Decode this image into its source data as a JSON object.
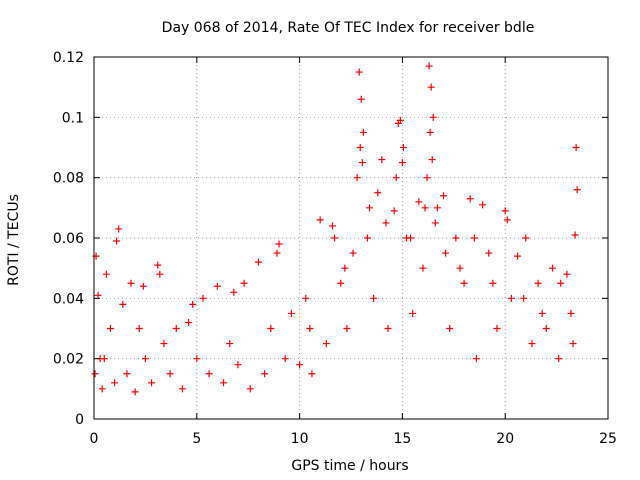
{
  "chart_data": {
    "type": "scatter",
    "title": "Day 068 of 2014, Rate Of TEC Index for receiver bdle",
    "xlabel": "GPS time / hours",
    "ylabel": "ROTI / TECUs",
    "xlim": [
      0,
      25
    ],
    "ylim": [
      0,
      0.12
    ],
    "x_ticks": [
      "0",
      "5",
      "10",
      "15",
      "20",
      "25"
    ],
    "y_ticks": [
      "0",
      "0.02",
      "0.04",
      "0.06",
      "0.08",
      "0.1",
      "0.12"
    ],
    "grid": true,
    "marker": "+",
    "color": "#ff0000",
    "series": [
      {
        "x": [
          0.05,
          0.1,
          0.2,
          0.3,
          0.4,
          0.6,
          0.8,
          1.0,
          1.2,
          1.4,
          1.6,
          1.8,
          2.0,
          2.2,
          2.5,
          2.8,
          3.1,
          3.4,
          3.7,
          4.0,
          4.3,
          4.6,
          5.0,
          5.3,
          5.6,
          6.0,
          6.3,
          6.6,
          7.0,
          7.3,
          7.6,
          8.0,
          8.3,
          8.6,
          9.0,
          9.3,
          9.6,
          10.0,
          10.3,
          10.6,
          11.0,
          11.3,
          11.6,
          12.0,
          12.3,
          12.6,
          12.8,
          12.9,
          13.0,
          13.1,
          13.3,
          13.6,
          14.0,
          14.3,
          14.6,
          14.8,
          14.9,
          15.0,
          15.2,
          15.5,
          15.8,
          16.0,
          16.2,
          16.3,
          16.4,
          16.5,
          16.7,
          17.0,
          17.3,
          17.6,
          18.0,
          18.3,
          18.6,
          18.9,
          19.2,
          19.6,
          20.0,
          20.3,
          20.6,
          21.0,
          21.3,
          21.6,
          22.0,
          22.3,
          22.6,
          23.0,
          23.2,
          23.4,
          23.45,
          23.5,
          0.5,
          1.1,
          2.4,
          3.2,
          4.8,
          6.8,
          8.9,
          10.5,
          11.7,
          12.2,
          12.95,
          13.05,
          13.4,
          13.8,
          14.2,
          14.7,
          15.05,
          15.4,
          16.1,
          16.35,
          16.45,
          16.6,
          17.1,
          17.8,
          18.5,
          19.4,
          20.1,
          20.9,
          21.8,
          22.7,
          23.3
        ],
        "y": [
          0.015,
          0.054,
          0.041,
          0.02,
          0.01,
          0.048,
          0.03,
          0.012,
          0.063,
          0.038,
          0.015,
          0.045,
          0.009,
          0.03,
          0.02,
          0.012,
          0.051,
          0.025,
          0.015,
          0.03,
          0.01,
          0.032,
          0.02,
          0.04,
          0.015,
          0.044,
          0.012,
          0.025,
          0.018,
          0.045,
          0.01,
          0.052,
          0.015,
          0.03,
          0.058,
          0.02,
          0.035,
          0.018,
          0.04,
          0.015,
          0.066,
          0.025,
          0.064,
          0.045,
          0.03,
          0.055,
          0.08,
          0.115,
          0.106,
          0.095,
          0.06,
          0.04,
          0.086,
          0.03,
          0.069,
          0.098,
          0.099,
          0.085,
          0.06,
          0.035,
          0.072,
          0.05,
          0.08,
          0.117,
          0.11,
          0.1,
          0.07,
          0.074,
          0.03,
          0.06,
          0.045,
          0.073,
          0.02,
          0.071,
          0.055,
          0.03,
          0.069,
          0.04,
          0.054,
          0.06,
          0.025,
          0.045,
          0.03,
          0.05,
          0.02,
          0.048,
          0.035,
          0.061,
          0.09,
          0.076,
          0.02,
          0.059,
          0.044,
          0.048,
          0.038,
          0.042,
          0.055,
          0.03,
          0.06,
          0.05,
          0.09,
          0.085,
          0.07,
          0.075,
          0.065,
          0.08,
          0.09,
          0.06,
          0.07,
          0.095,
          0.086,
          0.065,
          0.055,
          0.05,
          0.06,
          0.045,
          0.066,
          0.04,
          0.035,
          0.045,
          0.025
        ]
      }
    ]
  }
}
